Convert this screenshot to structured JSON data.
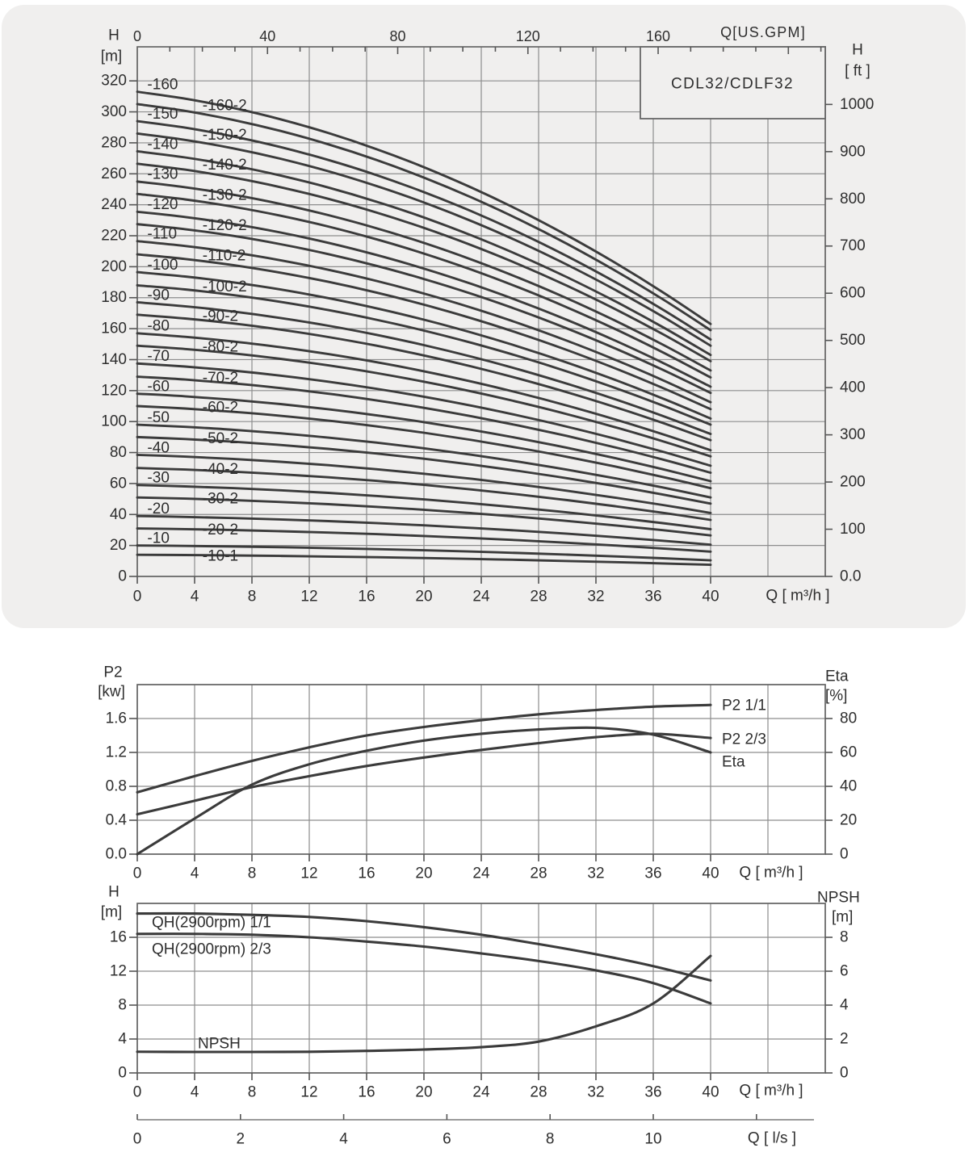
{
  "page": {
    "colors": {
      "background": "#ffffff",
      "panel_bg": "#f0efee",
      "grid": "#8d8d8d",
      "border": "#666666",
      "tick": "#555555",
      "curve": "#3b3b3b",
      "text": "#2e2e2e"
    }
  },
  "chart_data": [
    {
      "id": "qh-family-chart",
      "type": "line",
      "title": "CDL32/CDLF32",
      "x_axis_bottom": {
        "label": "Q [ m³/h ]",
        "min": 0,
        "max": 48,
        "grid_step": 4,
        "tick_labels": [
          0,
          4,
          8,
          12,
          16,
          20,
          24,
          28,
          32,
          36,
          40
        ]
      },
      "x_axis_top": {
        "label": "Q[US.GPM]",
        "tick_labels": [
          0,
          40,
          80,
          120,
          160
        ],
        "minor_step": 10,
        "minor_max": 210
      },
      "y_axis_left": {
        "label": [
          "H",
          "[m]"
        ],
        "min": 0,
        "max": 342,
        "grid_step": 20,
        "tick_labels": [
          0,
          20,
          40,
          60,
          80,
          100,
          120,
          140,
          160,
          180,
          200,
          220,
          240,
          260,
          280,
          300,
          320
        ]
      },
      "y_axis_right": {
        "label": [
          "H",
          "[ ft ]"
        ],
        "tick_labels": [
          100,
          200,
          300,
          400,
          500,
          600,
          700,
          800,
          900,
          1000
        ],
        "zero_label": "0.0"
      },
      "q_range": [
        0,
        40
      ],
      "drop_profile": {
        "linear": 0.3,
        "quadratic": 0.7
      },
      "series": [
        {
          "name": "-160",
          "kind": "primary",
          "h0": 313,
          "h40": 163
        },
        {
          "name": "-160-2",
          "kind": "secondary",
          "h0": 305,
          "h40": 159
        },
        {
          "name": "-150",
          "kind": "primary",
          "h0": 294,
          "h40": 153
        },
        {
          "name": "-150-2",
          "kind": "secondary",
          "h0": 286,
          "h40": 149
        },
        {
          "name": "-140",
          "kind": "primary",
          "h0": 274.5,
          "h40": 143
        },
        {
          "name": "-140-2",
          "kind": "secondary",
          "h0": 266.5,
          "h40": 139
        },
        {
          "name": "-130",
          "kind": "primary",
          "h0": 255,
          "h40": 133
        },
        {
          "name": "-130-2",
          "kind": "secondary",
          "h0": 247,
          "h40": 128.5
        },
        {
          "name": "-120",
          "kind": "primary",
          "h0": 235.5,
          "h40": 122.5
        },
        {
          "name": "-120-2",
          "kind": "secondary",
          "h0": 227.5,
          "h40": 118.5
        },
        {
          "name": "-110",
          "kind": "primary",
          "h0": 216.5,
          "h40": 112.5
        },
        {
          "name": "-110-2",
          "kind": "secondary",
          "h0": 208,
          "h40": 108
        },
        {
          "name": "-100",
          "kind": "primary",
          "h0": 196.5,
          "h40": 102
        },
        {
          "name": "-100-2",
          "kind": "secondary",
          "h0": 188,
          "h40": 98
        },
        {
          "name": "-90",
          "kind": "primary",
          "h0": 177,
          "h40": 92
        },
        {
          "name": "-90-2",
          "kind": "secondary",
          "h0": 169,
          "h40": 88
        },
        {
          "name": "-80",
          "kind": "primary",
          "h0": 157,
          "h40": 81.5
        },
        {
          "name": "-80-2",
          "kind": "secondary",
          "h0": 149,
          "h40": 77.5
        },
        {
          "name": "-70",
          "kind": "primary",
          "h0": 137.5,
          "h40": 71.5
        },
        {
          "name": "-70-2",
          "kind": "secondary",
          "h0": 129,
          "h40": 67
        },
        {
          "name": "-60",
          "kind": "primary",
          "h0": 118,
          "h40": 61.5
        },
        {
          "name": "-60-2",
          "kind": "secondary",
          "h0": 110,
          "h40": 57
        },
        {
          "name": "-50",
          "kind": "primary",
          "h0": 98,
          "h40": 51
        },
        {
          "name": "-50-2",
          "kind": "secondary",
          "h0": 90,
          "h40": 47
        },
        {
          "name": "-40",
          "kind": "primary",
          "h0": 78.5,
          "h40": 41
        },
        {
          "name": "-40-2",
          "kind": "secondary",
          "h0": 70,
          "h40": 36.5
        },
        {
          "name": "-30",
          "kind": "primary",
          "h0": 59,
          "h40": 30.5
        },
        {
          "name": "-30-2",
          "kind": "secondary",
          "h0": 51,
          "h40": 26.5
        },
        {
          "name": "-20",
          "kind": "primary",
          "h0": 39,
          "h40": 20.5
        },
        {
          "name": "-20-2",
          "kind": "secondary",
          "h0": 31,
          "h40": 16
        },
        {
          "name": "-10",
          "kind": "primary",
          "h0": 20,
          "h40": 10.4
        },
        {
          "name": "-10-1",
          "kind": "secondary",
          "h0": 14,
          "h40": 7.5
        }
      ]
    },
    {
      "id": "power-efficiency-chart",
      "type": "line",
      "x_axis_bottom": {
        "label": "Q [ m³/h ]",
        "min": 0,
        "max": 48,
        "grid_step": 4,
        "tick_labels": [
          0,
          4,
          8,
          12,
          16,
          20,
          24,
          28,
          32,
          36,
          40
        ]
      },
      "y_axis_left": {
        "label": [
          "P2",
          "[kw]"
        ],
        "min": 0,
        "max": 2.0,
        "grid_step": 0.4,
        "tick_labels": [
          "0.0",
          "0.4",
          "0.8",
          "1.2",
          "1.6"
        ]
      },
      "y_axis_right": {
        "label": [
          "Eta",
          "[%]"
        ],
        "min": 0,
        "max": 100,
        "grid_step": 20,
        "tick_labels": [
          0,
          20,
          40,
          60,
          80
        ]
      },
      "x": [
        0,
        4,
        8,
        12,
        16,
        20,
        24,
        28,
        32,
        36,
        40
      ],
      "series": [
        {
          "name": "P2  1/1",
          "axis": "kw",
          "values": [
            0.73,
            0.92,
            1.1,
            1.26,
            1.4,
            1.5,
            1.58,
            1.65,
            1.7,
            1.74,
            1.76
          ],
          "label_dy": 1
        },
        {
          "name": "P2  2/3",
          "axis": "kw",
          "values": [
            0.47,
            0.63,
            0.79,
            0.92,
            1.04,
            1.14,
            1.23,
            1.31,
            1.38,
            1.42,
            1.37
          ],
          "label_dy": 2
        },
        {
          "name": "Eta",
          "axis": "pct",
          "values": [
            0,
            21,
            41,
            53,
            61,
            67,
            71,
            73.5,
            74.5,
            70.5,
            60
          ],
          "label_dy": 12
        }
      ]
    },
    {
      "id": "qh-npsh-chart",
      "type": "line",
      "x_axis_bottom": {
        "label": "Q [ m³/h ]",
        "min": 0,
        "max": 48,
        "grid_step": 4,
        "tick_labels": [
          0,
          4,
          8,
          12,
          16,
          20,
          24,
          28,
          32,
          36,
          40
        ]
      },
      "x_axis_ls": {
        "label": "Q [ l/s ]",
        "tick_labels": [
          0,
          2,
          4,
          6,
          8,
          10
        ],
        "tick_max": 12,
        "m3h_per_ls": 3.6
      },
      "y_axis_left": {
        "label": [
          "H",
          "[m]"
        ],
        "min": 0,
        "max": 20,
        "grid_step": 4,
        "tick_labels": [
          0,
          4,
          8,
          12,
          16
        ]
      },
      "y_axis_right": {
        "label": [
          "NPSH",
          "[m]"
        ],
        "min": 0,
        "max": 10,
        "grid_step": 2,
        "tick_labels": [
          0,
          2,
          4,
          6,
          8
        ]
      },
      "x": [
        0,
        4,
        8,
        12,
        16,
        20,
        24,
        28,
        32,
        36,
        40
      ],
      "series": [
        {
          "name": "QH(2900rpm) 1/1",
          "axis": "h",
          "values": [
            18.8,
            18.8,
            18.65,
            18.4,
            17.9,
            17.2,
            16.3,
            15.2,
            14.0,
            12.6,
            10.9
          ]
        },
        {
          "name": "QH(2900rpm) 2/3",
          "axis": "h",
          "values": [
            16.4,
            16.4,
            16.3,
            16.0,
            15.5,
            14.9,
            14.1,
            13.2,
            12.1,
            10.6,
            8.2
          ]
        },
        {
          "name": "NPSH",
          "axis": "npsh",
          "values": [
            1.25,
            1.24,
            1.24,
            1.25,
            1.3,
            1.38,
            1.52,
            1.85,
            2.75,
            4.1,
            6.9
          ]
        }
      ]
    }
  ]
}
